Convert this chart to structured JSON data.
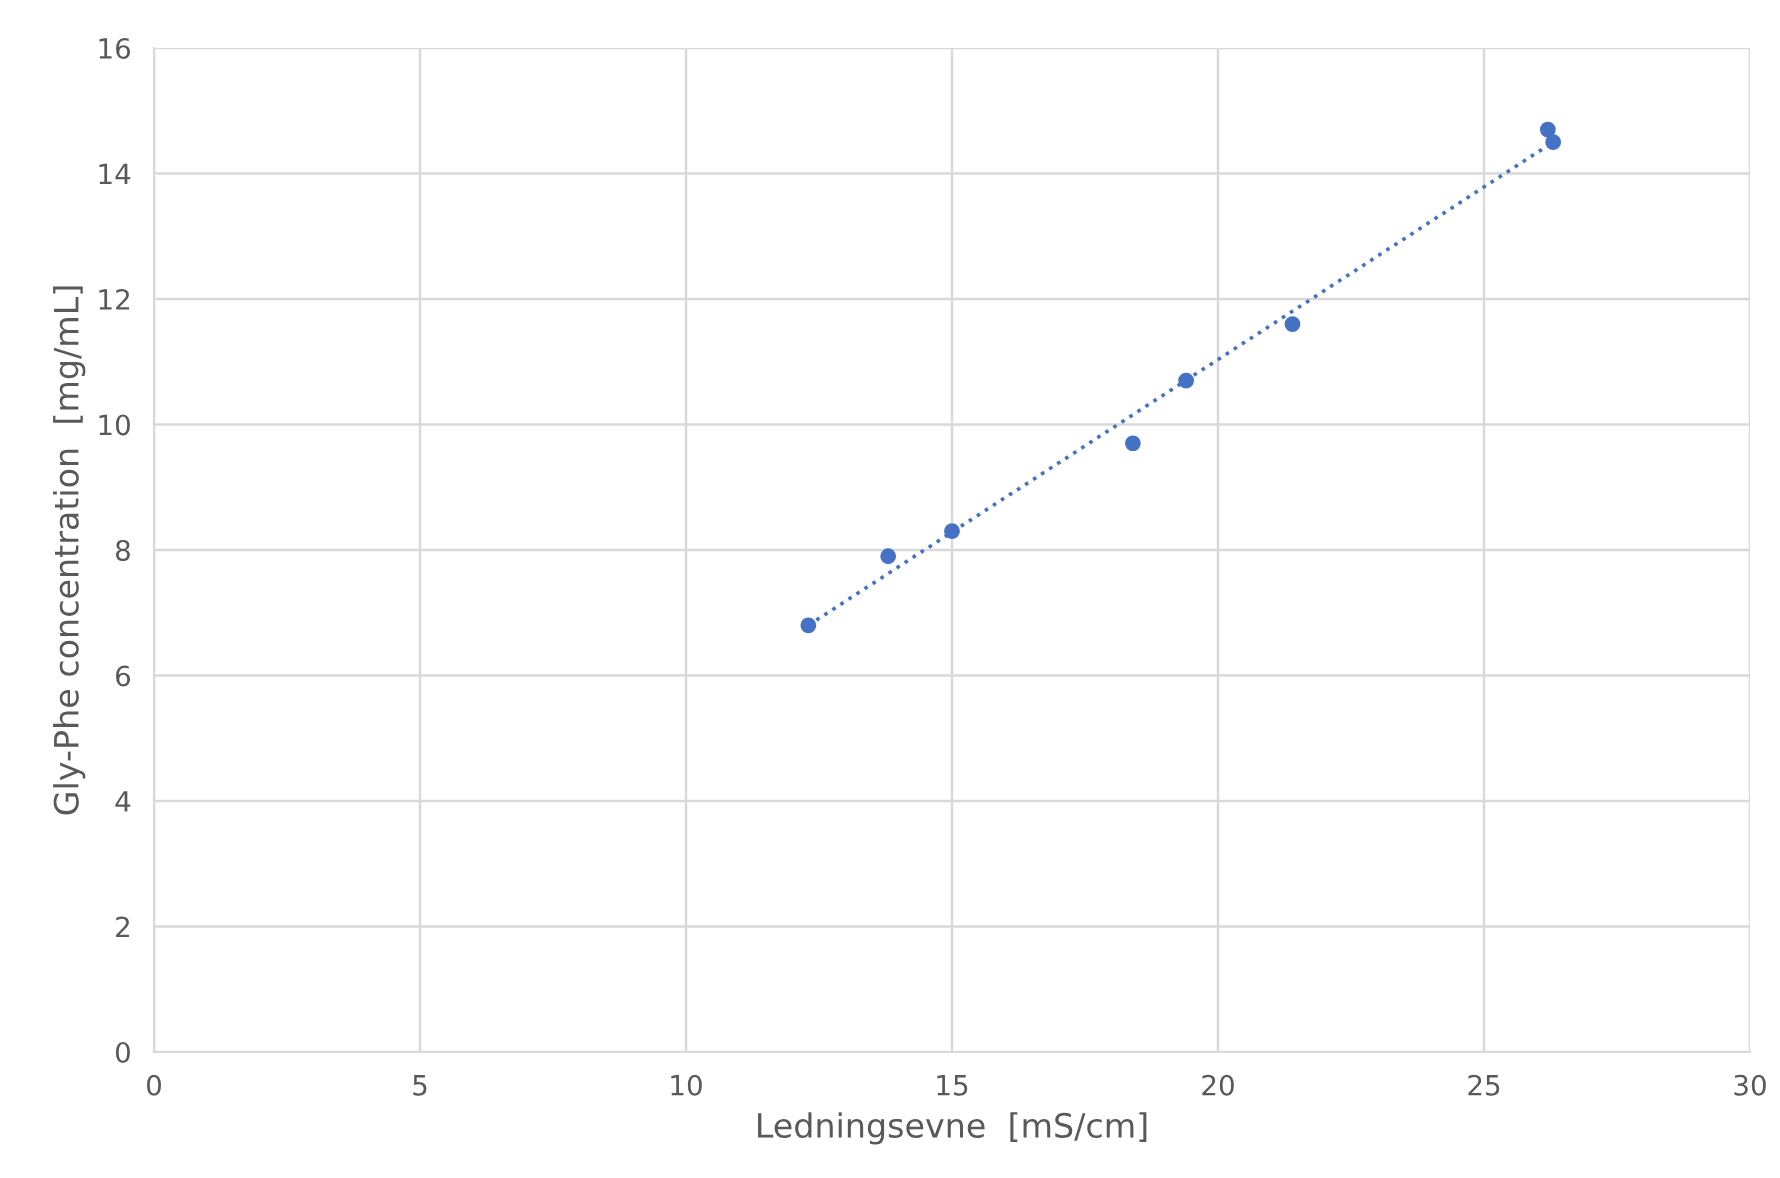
{
  "chart_data": {
    "type": "scatter",
    "xlabel": "Ledningsevne  [mS/cm]",
    "ylabel": "Gly-Phe concentration  [mg/mL]",
    "xlim": [
      0,
      30
    ],
    "xticks": [
      0,
      5,
      10,
      15,
      20,
      25,
      30
    ],
    "ylim": [
      0,
      16
    ],
    "yticks": [
      0,
      2,
      4,
      6,
      8,
      10,
      12,
      14,
      16
    ],
    "grid": true,
    "marker": "circle",
    "series": [
      {
        "color": "#4472c4",
        "x": [
          12.3,
          13.8,
          15.0,
          18.4,
          19.4,
          21.4,
          26.2,
          26.3
        ],
        "values": [
          6.8,
          7.9,
          8.3,
          9.7,
          10.7,
          11.6,
          14.7,
          14.5
        ]
      },
      {
        "type": "line",
        "color": "#4472c4",
        "line_style": "dotted",
        "marker": "none",
        "x": [
          12.3,
          26.3
        ],
        "values": [
          6.8,
          14.5
        ]
      }
    ]
  }
}
